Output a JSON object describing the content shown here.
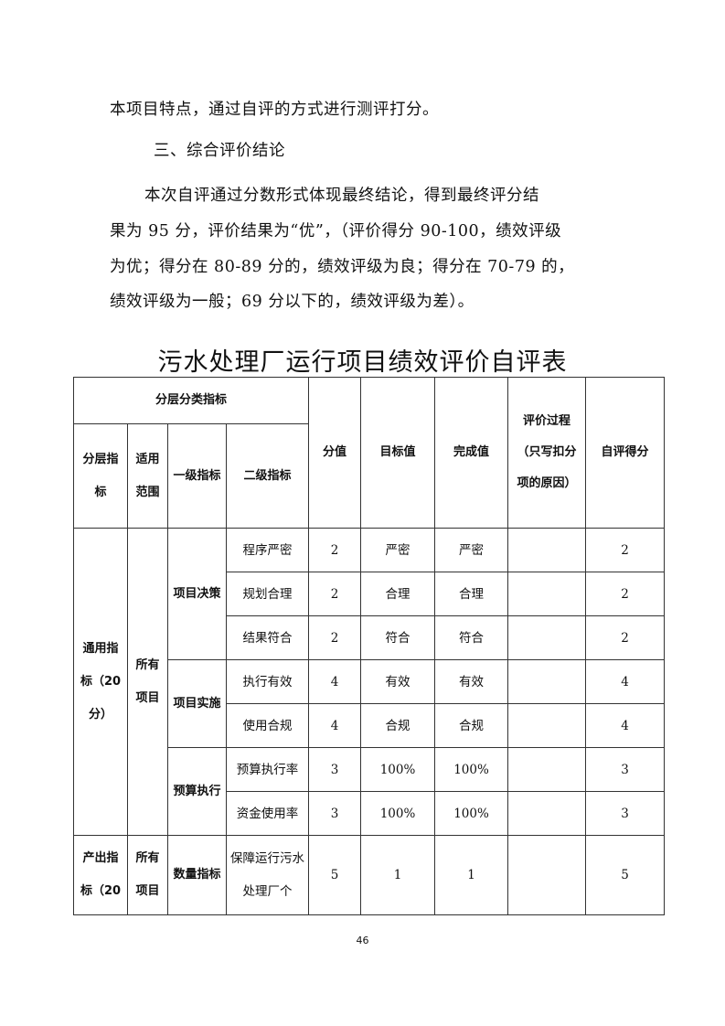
{
  "paragraphs": {
    "line1": "本项目特点，通过自评的方式进行测评打分。",
    "heading": "三、综合评价结论",
    "line2": "本次自评通过分数形式体现最终结论，得到最终评分结",
    "line3": "果为 95 分，评价结果为“优”，（评价得分 90-100，绩效评级",
    "line4": "为优；得分在 80-89 分的，绩效评级为良；得分在 70-79 的，",
    "line5": "绩效评级为一般；69 分以下的，绩效评级为差）。"
  },
  "table_title": "污水处理厂运行项目绩效评价自评表",
  "table": {
    "headers": {
      "group": "分层分类指标",
      "layer": "分层指标",
      "scope": "适用范围",
      "level1": "一级指标",
      "level2": "二级指标",
      "score": "分值",
      "target": "目标值",
      "actual": "完成值",
      "process": "评价过程（只写扣分项的原因）",
      "self_score": "自评得分"
    },
    "groups": {
      "general": "通用指标（20分）",
      "all_projects": "所有项目",
      "decision": "项目决策",
      "implementation": "项目实施",
      "budget": "预算执行",
      "output": "产出指标（20",
      "all_projects2": "所有项目",
      "quantity": "数量指标"
    },
    "rows": [
      {
        "level2": "程序严密",
        "score": "2",
        "target": "严密",
        "actual": "严密",
        "process": "",
        "self": "2"
      },
      {
        "level2": "规划合理",
        "score": "2",
        "target": "合理",
        "actual": "合理",
        "process": "",
        "self": "2"
      },
      {
        "level2": "结果符合",
        "score": "2",
        "target": "符合",
        "actual": "符合",
        "process": "",
        "self": "2"
      },
      {
        "level2": "执行有效",
        "score": "4",
        "target": "有效",
        "actual": "有效",
        "process": "",
        "self": "4"
      },
      {
        "level2": "使用合规",
        "score": "4",
        "target": "合规",
        "actual": "合规",
        "process": "",
        "self": "4"
      },
      {
        "level2": "预算执行率",
        "score": "3",
        "target": "100%",
        "actual": "100%",
        "process": "",
        "self": "3"
      },
      {
        "level2": "资金使用率",
        "score": "3",
        "target": "100%",
        "actual": "100%",
        "process": "",
        "self": "3"
      },
      {
        "level2": "保障运行污水处理厂个",
        "score": "5",
        "target": "1",
        "actual": "1",
        "process": "",
        "self": "5"
      }
    ]
  },
  "page_number": "46"
}
